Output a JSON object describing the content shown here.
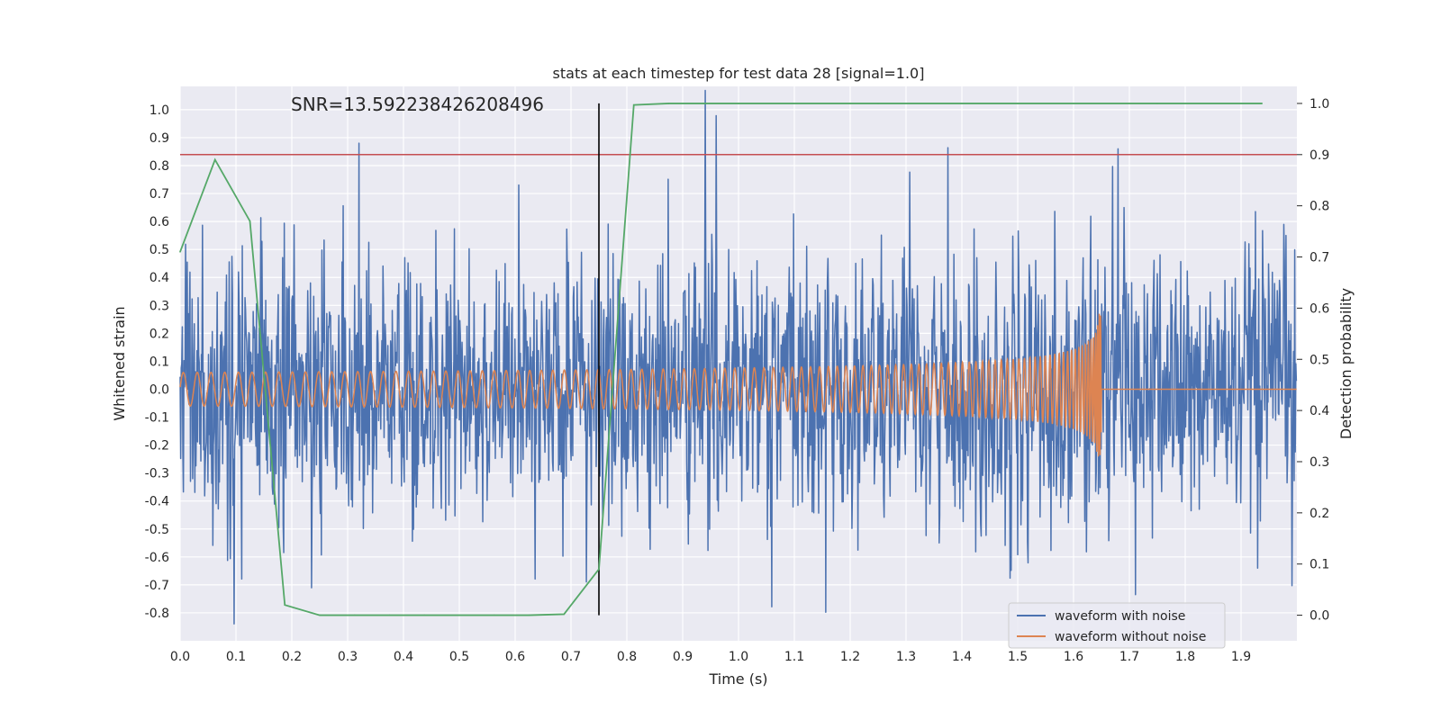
{
  "chart_data": {
    "type": "line",
    "title": "stats at each timestep for test data 28 [signal=1.0]",
    "xlabel": "Time (s)",
    "ylabel": "Whitened strain",
    "y2label": "Detection probability",
    "annotation": "SNR=13.592238426208496",
    "xlim": [
      0.0,
      2.0
    ],
    "ylim": [
      -0.9,
      1.0833
    ],
    "y2lim": [
      -0.05,
      1.0333
    ],
    "x_ticks": [
      "0.0",
      "0.1",
      "0.2",
      "0.3",
      "0.4",
      "0.5",
      "0.6",
      "0.7",
      "0.8",
      "0.9",
      "1.0",
      "1.1",
      "1.2",
      "1.3",
      "1.4",
      "1.5",
      "1.6",
      "1.7",
      "1.8",
      "1.9"
    ],
    "y_ticks": [
      "-0.8",
      "-0.7",
      "-0.6",
      "-0.5",
      "-0.4",
      "-0.3",
      "-0.2",
      "-0.1",
      "0.0",
      "0.1",
      "0.2",
      "0.3",
      "0.4",
      "0.5",
      "0.6",
      "0.7",
      "0.8",
      "0.9",
      "1.0"
    ],
    "y2_ticks": [
      "0.0",
      "0.1",
      "0.2",
      "0.3",
      "0.4",
      "0.5",
      "0.6",
      "0.7",
      "0.8",
      "0.9",
      "1.0"
    ],
    "grid": true,
    "legend_position": "lower-right",
    "series": [
      {
        "name": "waveform with noise",
        "axis": "left",
        "color": "#4c72b0",
        "style": "noise",
        "noise_amplitude": 0.26,
        "noise_extremes": [
          [
            0.32,
            0.83
          ],
          [
            0.94,
            1.0
          ],
          [
            0.96,
            0.93
          ],
          [
            1.06,
            -0.81
          ],
          [
            1.68,
            0.86
          ],
          [
            0.01,
            0.49
          ],
          [
            0.04,
            0.63
          ],
          [
            0.145,
            0.65
          ],
          [
            0.085,
            -0.63
          ],
          [
            0.11,
            -0.68
          ],
          [
            0.235,
            -0.65
          ],
          [
            1.69,
            0.65
          ],
          [
            1.425,
            -0.68
          ],
          [
            1.5,
            -0.62
          ],
          [
            1.54,
            -0.57
          ],
          [
            1.93,
            -0.64
          ],
          [
            1.98,
            0.55
          ]
        ]
      },
      {
        "name": "waveform without noise",
        "axis": "left",
        "color": "#dd8452",
        "style": "chirp",
        "merger_time": 1.65,
        "amplitude_start": 0.06,
        "amplitude_peak": 0.37,
        "frequency_start_hz": 40
      },
      {
        "name": "",
        "axis": "right",
        "color": "#55a868",
        "style": "line",
        "x": [
          0.0,
          0.0625,
          0.125,
          0.1875,
          0.25,
          0.3125,
          0.375,
          0.4375,
          0.5,
          0.5625,
          0.625,
          0.6875,
          0.75,
          0.8125,
          0.875,
          0.9375,
          1.0,
          1.25,
          1.5,
          1.75,
          1.9375
        ],
        "values": [
          0.71,
          0.89,
          0.77,
          0.02,
          0.0,
          0.0,
          0.0,
          0.0,
          0.0,
          0.0,
          0.0,
          0.002,
          0.09,
          0.997,
          1.0,
          1.0,
          1.0,
          1.0,
          1.0,
          1.0,
          1.0
        ]
      }
    ],
    "threshold_line": {
      "axis": "right",
      "value": 0.9,
      "color": "#c44e52"
    },
    "vertical_line": {
      "x": 0.75,
      "axis": "right",
      "from": 0.0,
      "to": 1.0,
      "color": "#000000"
    }
  },
  "colors": {
    "plot_background": "#eaeaf2",
    "grid": "#ffffff",
    "text": "#262626"
  }
}
